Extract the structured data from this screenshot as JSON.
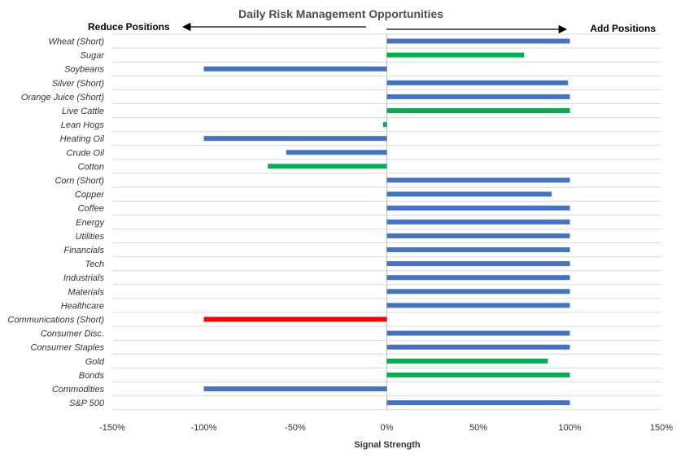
{
  "chart_data": {
    "type": "bar",
    "orientation": "horizontal",
    "title": "Daily Risk Management Opportunities",
    "xlabel": "Signal Strength",
    "ylabel": "",
    "left_annotation": "Reduce Positions",
    "right_annotation": "Add Positions",
    "xlim": [
      -150,
      150
    ],
    "x_ticks": [
      "-150%",
      "-100%",
      "-50%",
      "0%",
      "50%",
      "100%",
      "150%"
    ],
    "grid": "horizontal",
    "legend": "none",
    "categories": [
      "Wheat (Short)",
      "Sugar",
      "Soybeans",
      "Silver (Short)",
      "Orange Juice (Short)",
      "Live Cattle",
      "Lean Hogs",
      "Heating Oil",
      "Crude Oil",
      "Cotton",
      "Corn (Short)",
      "Copper",
      "Coffee",
      "Energy",
      "Utilities",
      "Financials",
      "Tech",
      "Industrials",
      "Materials",
      "Healthcare",
      "Communications (Short)",
      "Consumer Disc.",
      "Consumer Staples",
      "Gold",
      "Bonds",
      "Commodities",
      "S&P 500"
    ],
    "values": [
      100,
      75,
      -100,
      99,
      100,
      100,
      -2,
      -100,
      -55,
      -65,
      100,
      90,
      100,
      100,
      100,
      100,
      100,
      100,
      100,
      100,
      -100,
      100,
      100,
      88,
      100,
      -100,
      100
    ],
    "bar_colors": [
      "blue",
      "green",
      "blue",
      "blue",
      "blue",
      "green",
      "green",
      "blue",
      "blue",
      "green",
      "blue",
      "blue",
      "blue",
      "blue",
      "blue",
      "blue",
      "blue",
      "blue",
      "blue",
      "blue",
      "red",
      "blue",
      "blue",
      "green",
      "green",
      "blue",
      "blue"
    ],
    "colors": {
      "blue": "#4472c4",
      "green": "#00b050",
      "red": "#ff0000"
    }
  }
}
